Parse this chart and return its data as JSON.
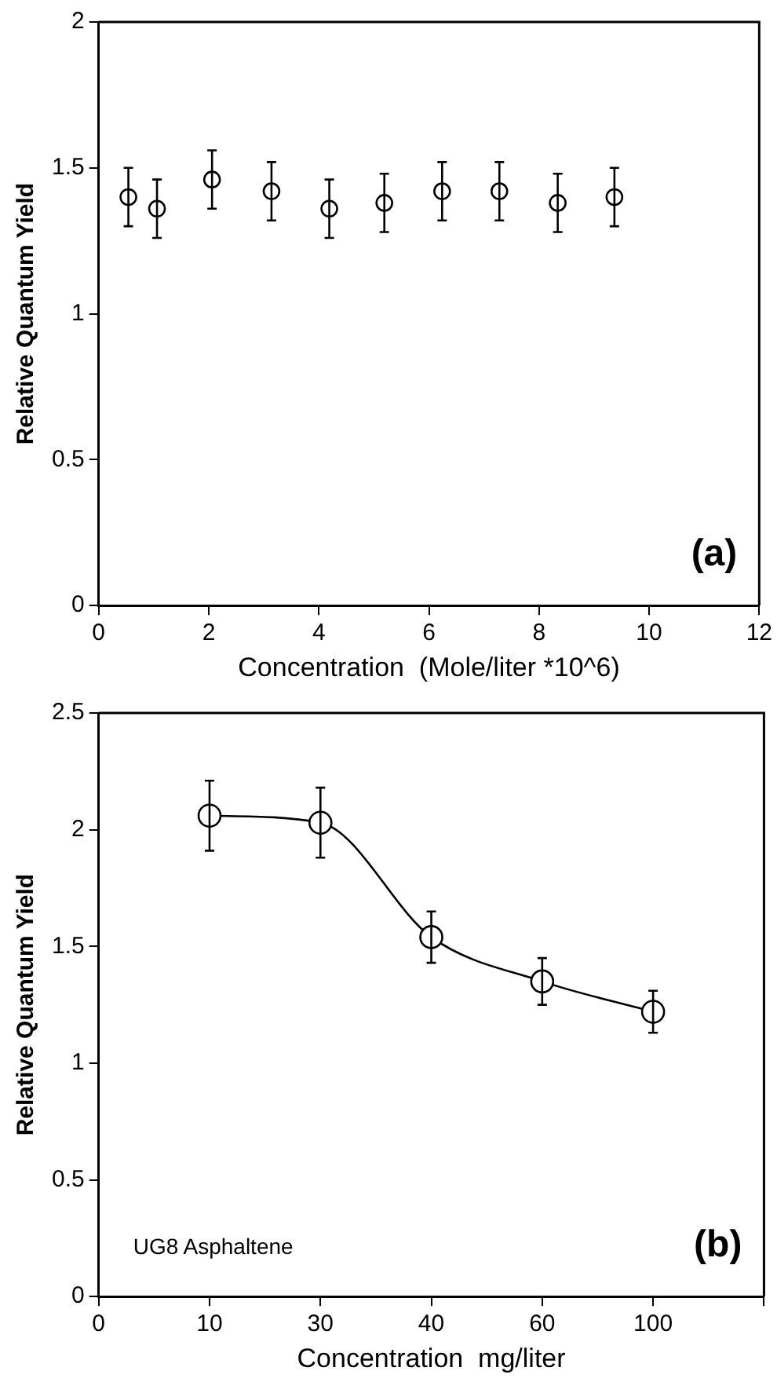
{
  "chart_data": [
    {
      "type": "scatter",
      "xlabel": "Concentration  (Mole/liter *10^6)",
      "ylabel": "Relative Quantum Yield",
      "annotations": [
        "(a)"
      ],
      "series": [
        {
          "color": "#000000",
          "x": [
            0.54,
            1.06,
            2.06,
            3.14,
            4.19,
            5.19,
            6.24,
            7.28,
            8.34,
            9.37
          ],
          "values": [
            1.4,
            1.36,
            1.46,
            1.42,
            1.36,
            1.38,
            1.42,
            1.42,
            1.38,
            1.4
          ],
          "errors": [
            0.1,
            0.1,
            0.1,
            0.1,
            0.1,
            0.1,
            0.1,
            0.1,
            0.1,
            0.1
          ]
        }
      ],
      "xlim": [
        0,
        12
      ],
      "xticks": [
        0,
        2,
        4,
        6,
        8,
        10,
        12
      ],
      "ylim": [
        0,
        2
      ],
      "yticks": [
        0,
        0.5,
        1,
        1.5,
        2
      ],
      "marker": "circle",
      "grid": false,
      "legend": false
    },
    {
      "type": "line",
      "xlabel": "Concentration  mg/liter",
      "ylabel": "Relative Quantum Yield",
      "annotations": [
        "UG8 Asphaltene",
        "(b)"
      ],
      "categories": [
        "0",
        "10",
        "30",
        "40",
        "60",
        "100",
        null
      ],
      "series": [
        {
          "color": "#000000",
          "values": [
            null,
            2.06,
            2.03,
            1.54,
            1.35,
            1.22,
            null
          ],
          "errors": [
            null,
            0.15,
            0.15,
            0.11,
            0.1,
            0.09,
            null
          ]
        }
      ],
      "ylim": [
        0,
        2.5
      ],
      "yticks": [
        0,
        0.5,
        1,
        1.5,
        2,
        2.5
      ],
      "marker": "circle",
      "line_style": "solid",
      "grid": false,
      "legend": false
    }
  ]
}
